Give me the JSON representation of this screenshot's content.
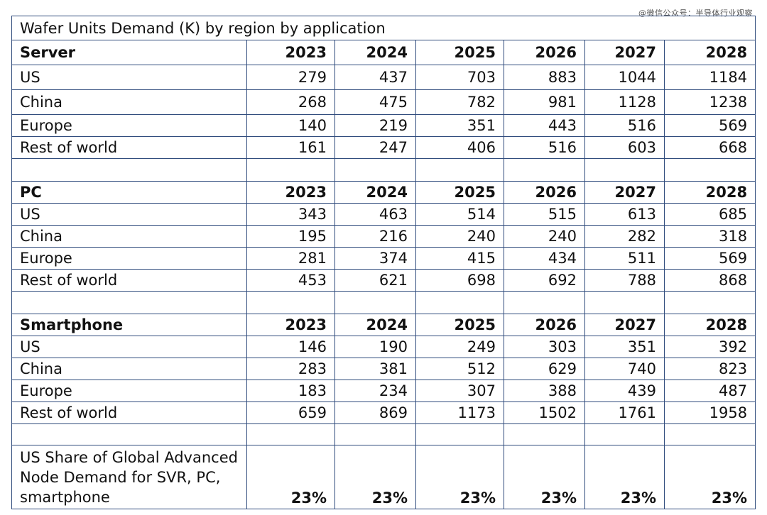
{
  "watermark": "@微信公众号：半导体行业观察",
  "title": "Wafer Units Demand (K) by region by application",
  "years": [
    "2023",
    "2024",
    "2025",
    "2026",
    "2027",
    "2028"
  ],
  "sections": [
    {
      "name": "Server",
      "rows": [
        {
          "region": "US",
          "values": [
            "279",
            "437",
            "703",
            "883",
            "1044",
            "1184"
          ]
        },
        {
          "region": "China",
          "values": [
            "268",
            "475",
            "782",
            "981",
            "1128",
            "1238"
          ]
        },
        {
          "region": "Europe",
          "values": [
            "140",
            "219",
            "351",
            "443",
            "516",
            "569"
          ]
        },
        {
          "region": "Rest of world",
          "values": [
            "161",
            "247",
            "406",
            "516",
            "603",
            "668"
          ]
        }
      ]
    },
    {
      "name": "PC",
      "rows": [
        {
          "region": "US",
          "values": [
            "343",
            "463",
            "514",
            "515",
            "613",
            "685"
          ]
        },
        {
          "region": "China",
          "values": [
            "195",
            "216",
            "240",
            "240",
            "282",
            "318"
          ]
        },
        {
          "region": "Europe",
          "values": [
            "281",
            "374",
            "415",
            "434",
            "511",
            "569"
          ]
        },
        {
          "region": "Rest of world",
          "values": [
            "453",
            "621",
            "698",
            "692",
            "788",
            "868"
          ]
        }
      ]
    },
    {
      "name": "Smartphone",
      "rows": [
        {
          "region": "US",
          "values": [
            "146",
            "190",
            "249",
            "303",
            "351",
            "392"
          ]
        },
        {
          "region": "China",
          "values": [
            "283",
            "381",
            "512",
            "629",
            "740",
            "823"
          ]
        },
        {
          "region": "Europe",
          "values": [
            "183",
            "234",
            "307",
            "388",
            "439",
            "487"
          ]
        },
        {
          "region": "Rest of world",
          "values": [
            "659",
            "869",
            "1173",
            "1502",
            "1761",
            "1958"
          ]
        }
      ]
    }
  ],
  "share": {
    "label": "US Share of Global Advanced Node Demand for SVR, PC, smartphone",
    "values": [
      "23%",
      "23%",
      "23%",
      "23%",
      "23%",
      "23%"
    ]
  }
}
